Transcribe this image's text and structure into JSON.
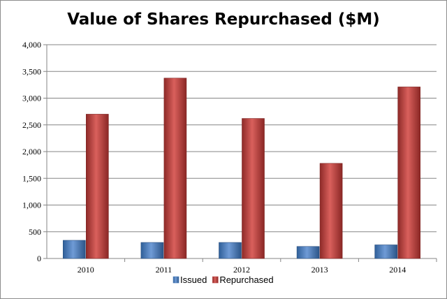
{
  "chart_data": {
    "type": "bar",
    "title": "Value of Shares Repurchased ($M)",
    "categories": [
      "2010",
      "2011",
      "2012",
      "2013",
      "2014"
    ],
    "series": [
      {
        "name": "Issued",
        "values": [
          340,
          300,
          300,
          225,
          255
        ],
        "color": "#4f81bd"
      },
      {
        "name": "Repurchased",
        "values": [
          2700,
          3375,
          2620,
          1780,
          3210
        ],
        "color": "#c0504d"
      }
    ],
    "xlabel": "",
    "ylabel": "",
    "ylim": [
      0,
      4000
    ],
    "yticks": [
      "0",
      "500",
      "1,000",
      "1,500",
      "2,000",
      "2,500",
      "3,000",
      "3,500",
      "4,000"
    ],
    "grid": true,
    "legend_position": "bottom"
  }
}
